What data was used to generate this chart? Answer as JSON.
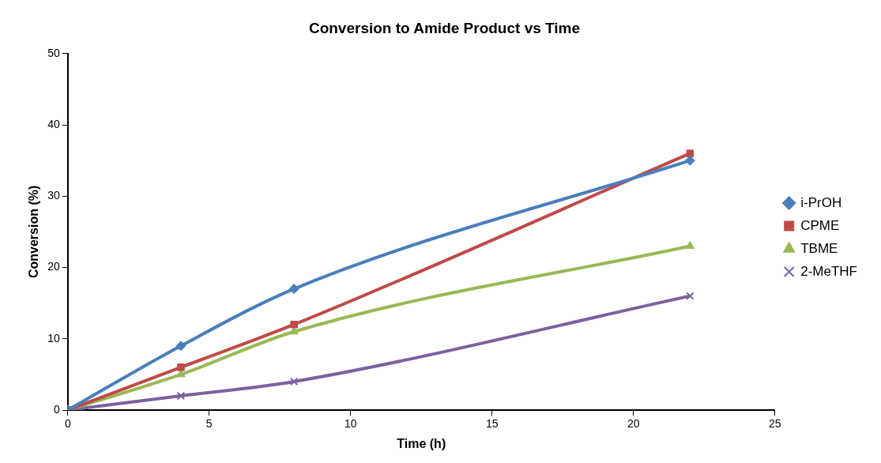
{
  "chart_data": {
    "type": "line",
    "title": "Conversion to Amide Product vs Time",
    "xlabel": "Time (h)",
    "ylabel": "Conversion (%)",
    "x": [
      0,
      4,
      8,
      22
    ],
    "series": [
      {
        "name": "i-PrOH",
        "color": "#4a7ebb",
        "values": [
          0,
          9,
          17,
          35
        ],
        "marker": "diamond"
      },
      {
        "name": "CPME",
        "color": "#be4b48",
        "values": [
          0,
          6,
          12,
          36
        ],
        "marker": "square"
      },
      {
        "name": "TBME",
        "color": "#98b954",
        "values": [
          0,
          5,
          11,
          23
        ],
        "marker": "triangle"
      },
      {
        "name": "2-MeTHF",
        "color": "#7d60a0",
        "values": [
          0,
          2,
          4,
          16
        ],
        "marker": "cross"
      }
    ],
    "xlim": [
      0,
      25
    ],
    "xticks": [
      0,
      5,
      10,
      15,
      20,
      25
    ],
    "ylim": [
      0,
      50
    ],
    "yticks": [
      0,
      10,
      20,
      30,
      40,
      50
    ],
    "grid": false,
    "legend": "right",
    "line_style": "solid"
  }
}
